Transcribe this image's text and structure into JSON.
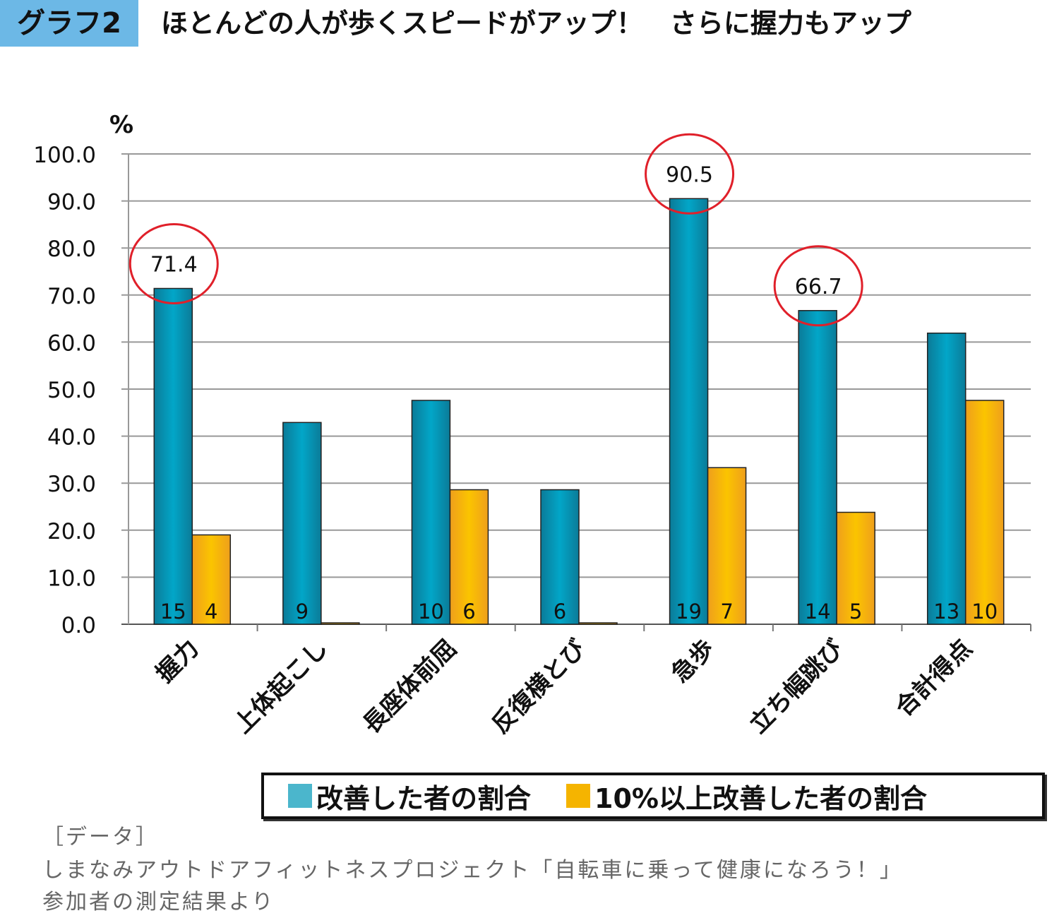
{
  "header": {
    "badge": "グラフ2",
    "title": "ほとんどの人が歩くスピードがアップ！　さらに握力もアップ"
  },
  "chart_data": {
    "type": "bar",
    "ylabel": "%",
    "ylim": [
      0,
      100
    ],
    "yticks": [
      "0.0",
      "10.0",
      "20.0",
      "30.0",
      "40.0",
      "50.0",
      "60.0",
      "70.0",
      "80.0",
      "90.0",
      "100.0"
    ],
    "grid": true,
    "categories": [
      "握力",
      "上体起こし",
      "長座体前屈",
      "反復横とび",
      "急歩",
      "立ち幅跳び",
      "合計得点"
    ],
    "series": [
      {
        "name": "改善した者の割合",
        "color": "#1a9cba",
        "values": [
          71.4,
          42.9,
          47.6,
          28.6,
          90.5,
          66.7,
          61.9
        ],
        "counts": [
          "15",
          "9",
          "10",
          "6",
          "19",
          "14",
          "13"
        ]
      },
      {
        "name": "10%以上改善した者の割合",
        "color": "#f5b400",
        "values": [
          19.0,
          0,
          28.6,
          0,
          33.3,
          23.8,
          47.6
        ],
        "counts": [
          "4",
          "",
          "6",
          "",
          "7",
          "5",
          "10"
        ]
      }
    ],
    "annotations": [
      {
        "category": "握力",
        "label": "71.4",
        "circled": true
      },
      {
        "category": "急歩",
        "label": "90.5",
        "circled": true
      },
      {
        "category": "立ち幅跳び",
        "label": "66.7",
        "circled": true
      }
    ],
    "legend_position": "bottom"
  },
  "legend": {
    "item1": "改善した者の割合",
    "item2": "10%以上改善した者の割合",
    "color1": "#4bb6cc",
    "color2": "#f5b400"
  },
  "footer": {
    "line1": "［データ］",
    "line2": "しまなみアウトドアフィットネスプロジェクト「自転車に乗って健康になろう！」",
    "line3": "参加者の測定結果より"
  }
}
